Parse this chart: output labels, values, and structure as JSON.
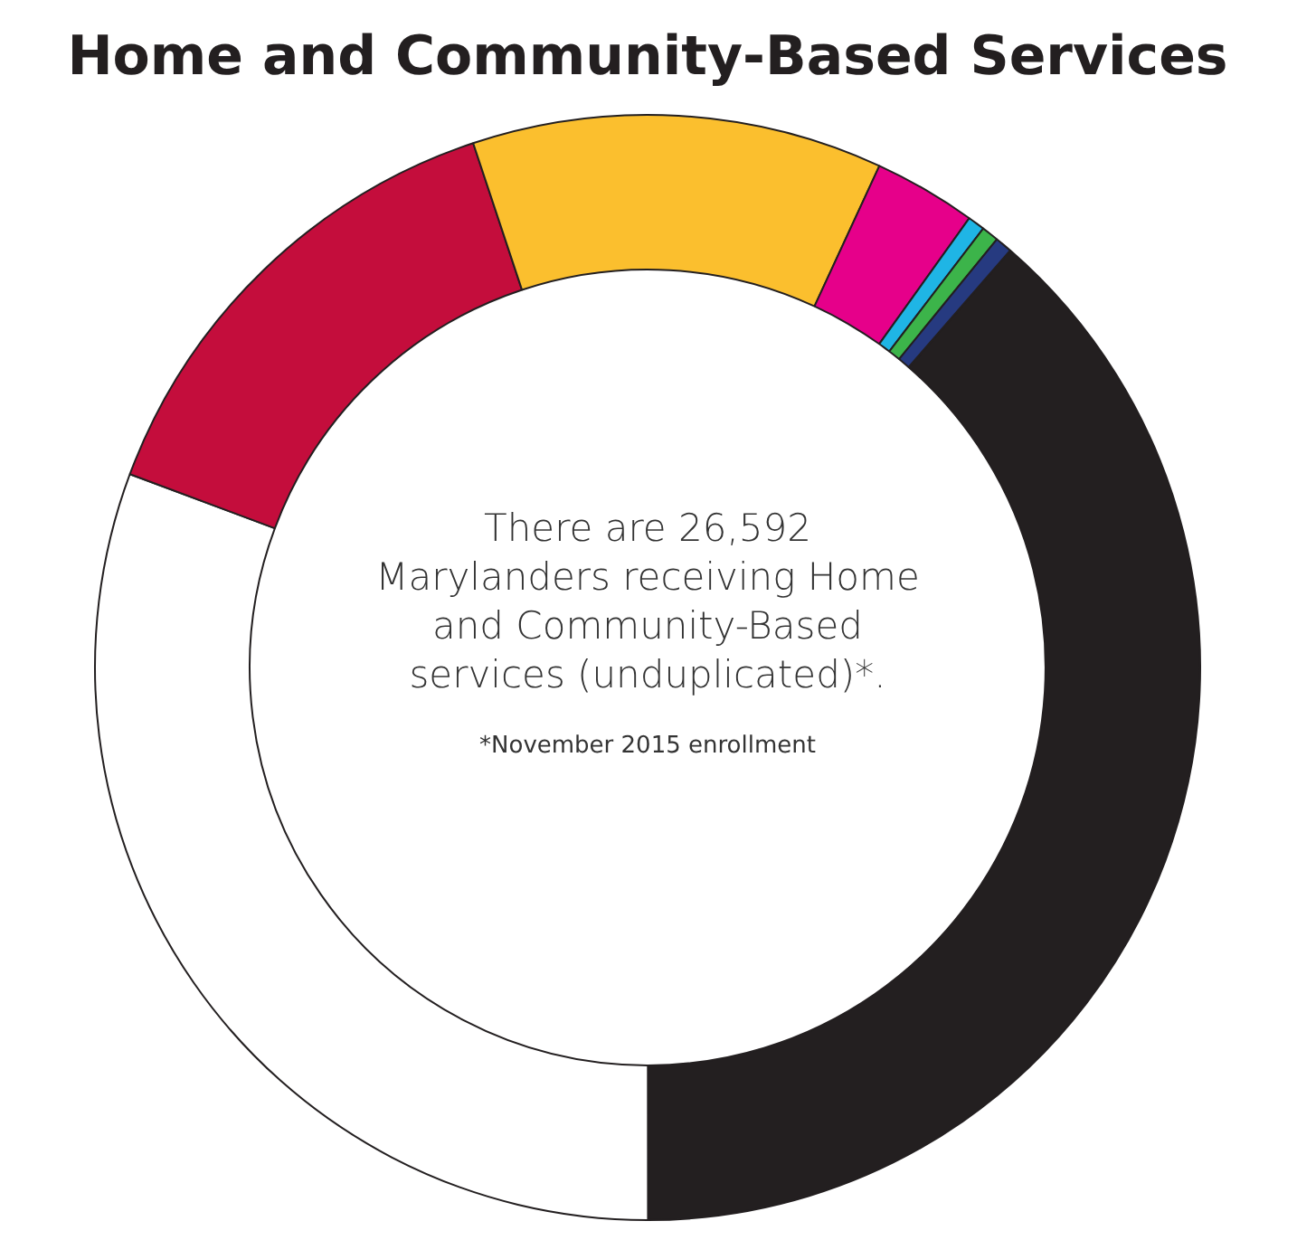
{
  "chart_data": {
    "type": "donut",
    "title": "Home and Community-Based Services",
    "categories": [
      null,
      null,
      null,
      null,
      null,
      null,
      null,
      null
    ],
    "values": [
      38.6,
      30.7,
      14.2,
      12,
      3,
      0.5,
      0.5,
      0.5
    ],
    "colors": [
      "#231f20",
      "#ffffff",
      "#c40d3c",
      "#fbbf2e",
      "#e6008a",
      "#1fb5e5",
      "#3cb44a",
      "#263a80"
    ],
    "annotations": [
      "There are 26,592 Marylanders receiving Home and Community-Based services (unduplicated)*.",
      "*November 2015 enrollment"
    ],
    "legend": false
  }
}
